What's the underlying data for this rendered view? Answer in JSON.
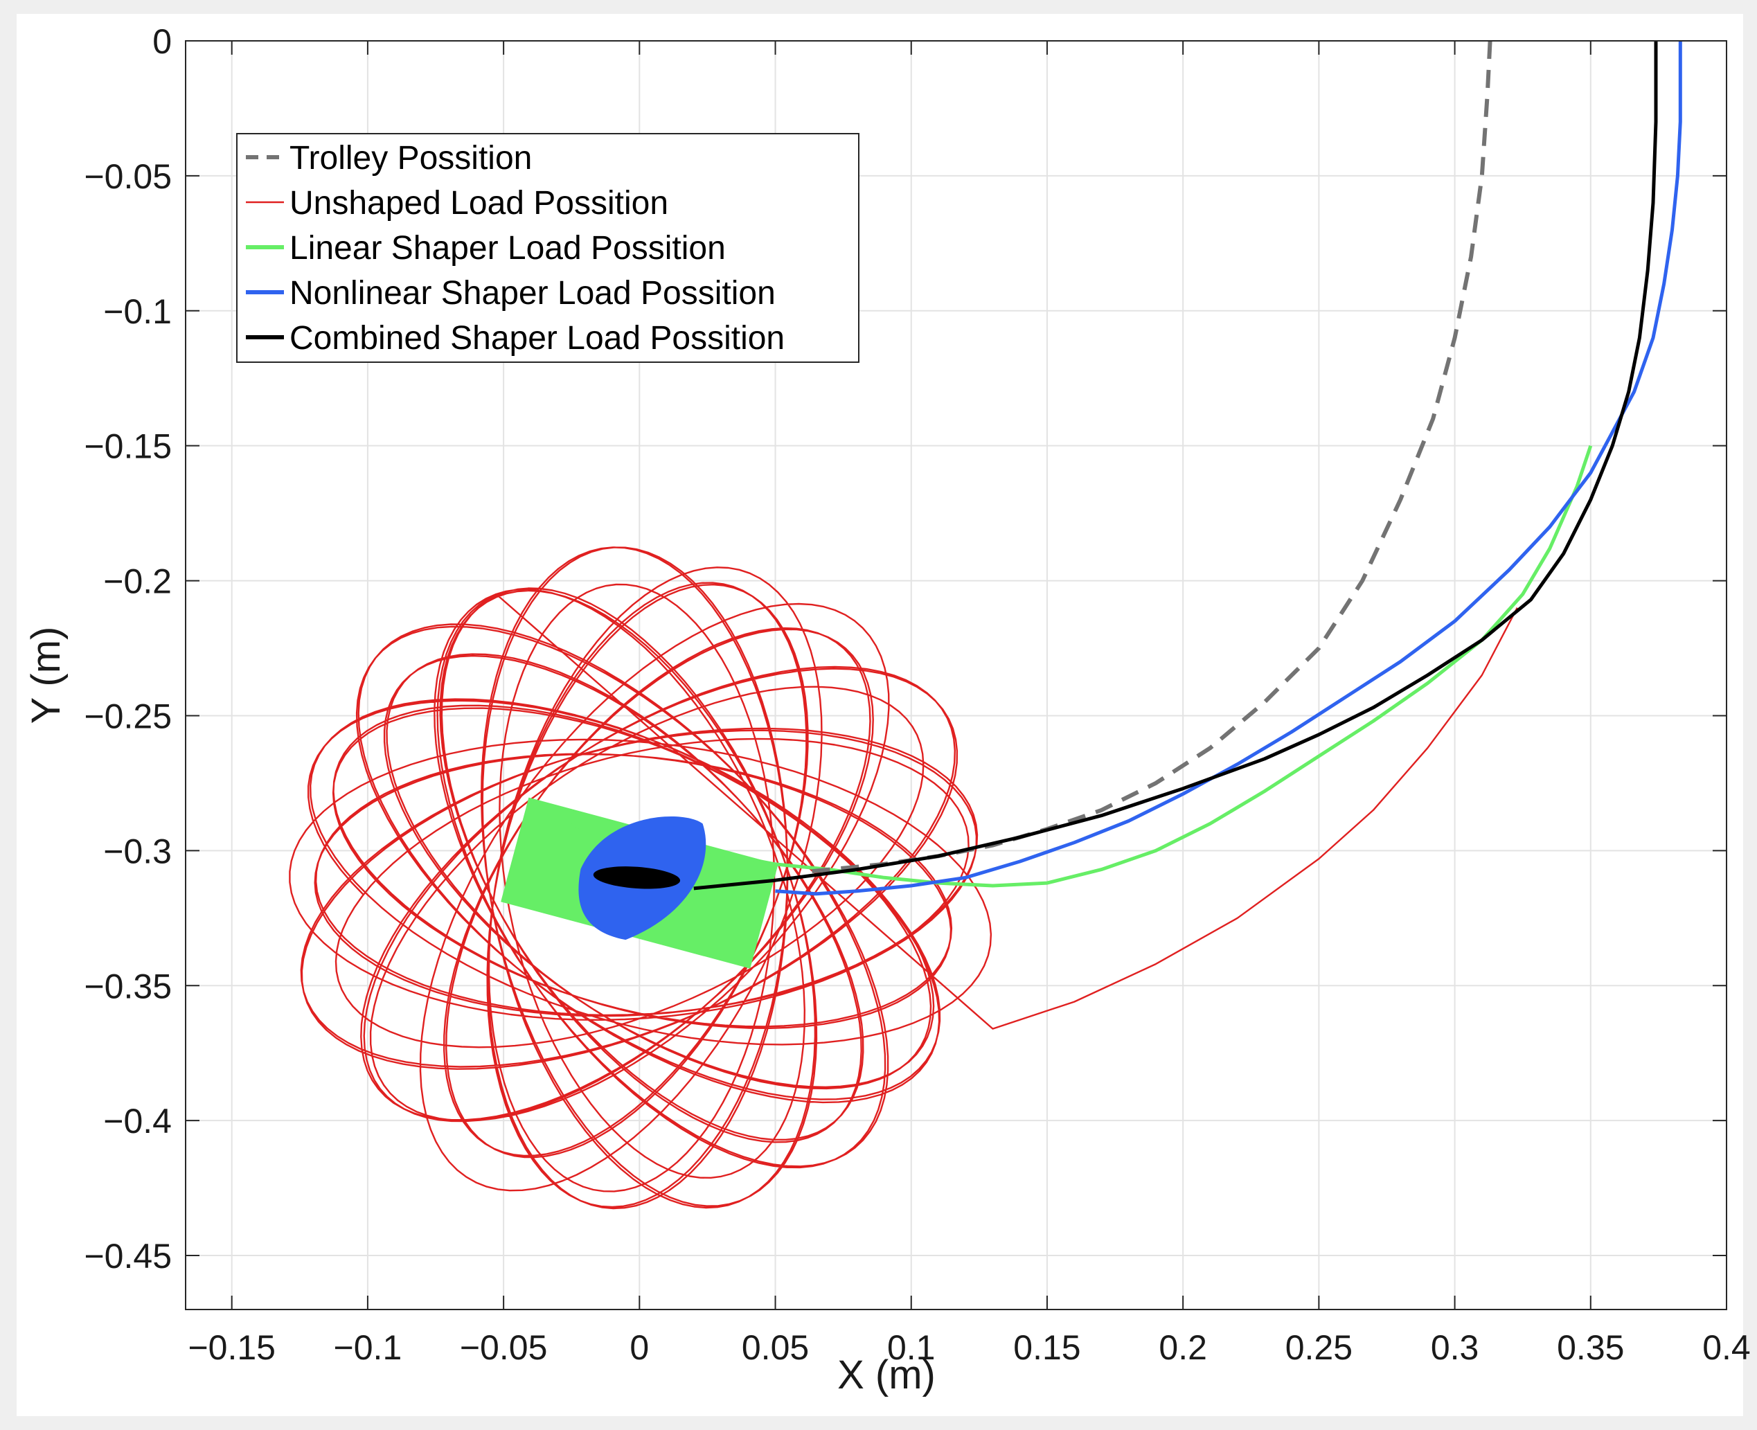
{
  "chart_data": {
    "type": "line",
    "title": "",
    "xlabel": "X (m)",
    "ylabel": "Y (m)",
    "xlim": [
      -0.167,
      0.4
    ],
    "ylim": [
      -0.47,
      0
    ],
    "grid": true,
    "legend_position": "top-left",
    "x_ticks": [
      -0.15,
      -0.1,
      -0.05,
      0,
      0.05,
      0.1,
      0.15,
      0.2,
      0.25,
      0.3,
      0.35,
      0.4
    ],
    "x_tick_labels": [
      "−0.15",
      "−0.1",
      "−0.05",
      "0",
      "0.05",
      "0.1",
      "0.15",
      "0.2",
      "0.25",
      "0.3",
      "0.35",
      "0.4"
    ],
    "y_ticks": [
      0,
      -0.05,
      -0.1,
      -0.15,
      -0.2,
      -0.25,
      -0.3,
      -0.35,
      -0.4,
      -0.45
    ],
    "y_tick_labels": [
      "0",
      "−0.05",
      "−0.1",
      "−0.15",
      "−0.2",
      "−0.25",
      "−0.3",
      "−0.35",
      "−0.4",
      "−0.45"
    ],
    "series": [
      {
        "name": "Trolley Possition",
        "color": "#737373",
        "style": "dashed",
        "x": [
          0.313,
          0.312,
          0.31,
          0.306,
          0.3,
          0.292,
          0.28,
          0.266,
          0.25,
          0.23,
          0.21,
          0.19,
          0.17,
          0.15,
          0.13,
          0.11,
          0.09,
          0.07,
          0.06
        ],
        "y": [
          0,
          -0.02,
          -0.05,
          -0.08,
          -0.11,
          -0.14,
          -0.17,
          -0.2,
          -0.225,
          -0.245,
          -0.262,
          -0.275,
          -0.285,
          -0.292,
          -0.298,
          -0.302,
          -0.305,
          -0.307,
          -0.308
        ]
      },
      {
        "name": "Unshaped Load Possition",
        "color": "#e02020",
        "style": "solid",
        "path": {
          "approach_x": [
            0.323,
            0.31,
            0.29,
            0.27,
            0.25,
            0.22,
            0.19,
            0.16,
            0.13
          ],
          "approach_y": [
            -0.21,
            -0.235,
            -0.262,
            -0.285,
            -0.303,
            -0.325,
            -0.342,
            -0.356,
            -0.366
          ],
          "oscillation_center": [
            0,
            -0.312
          ],
          "oscillation_loops": 22,
          "oscillation_rotation_deg": 115
        }
      },
      {
        "name": "Linear Shaper Load Possition",
        "color": "#66ee66",
        "style": "solid",
        "x": [
          0.35,
          0.345,
          0.335,
          0.325,
          0.31,
          0.29,
          0.27,
          0.25,
          0.23,
          0.21,
          0.19,
          0.17,
          0.15,
          0.13,
          0.11,
          0.09,
          0.07,
          0.05
        ],
        "y": [
          -0.15,
          -0.165,
          -0.188,
          -0.205,
          -0.222,
          -0.238,
          -0.252,
          -0.265,
          -0.278,
          -0.29,
          -0.3,
          -0.307,
          -0.312,
          -0.313,
          -0.312,
          -0.31,
          -0.307,
          -0.305
        ],
        "final_band": {
          "center": [
            0,
            -0.312
          ],
          "length": 0.095,
          "width": 0.04,
          "angle_deg": -15
        }
      },
      {
        "name": "Nonlinear Shaper Load Possition",
        "color": "#2f63ef",
        "style": "solid",
        "x": [
          0.383,
          0.383,
          0.382,
          0.38,
          0.377,
          0.373,
          0.366,
          0.358,
          0.35,
          0.335,
          0.32,
          0.3,
          0.28,
          0.26,
          0.24,
          0.22,
          0.2,
          0.18,
          0.16,
          0.14,
          0.12,
          0.1,
          0.08,
          0.065,
          0.05
        ],
        "y": [
          0,
          -0.03,
          -0.05,
          -0.07,
          -0.09,
          -0.11,
          -0.13,
          -0.145,
          -0.16,
          -0.18,
          -0.196,
          -0.215,
          -0.23,
          -0.243,
          -0.256,
          -0.268,
          -0.279,
          -0.289,
          -0.297,
          -0.304,
          -0.31,
          -0.313,
          -0.315,
          -0.316,
          -0.315
        ],
        "final_blob": {
          "center": [
            0.002,
            -0.311
          ],
          "size_x": 0.045,
          "size_y": 0.04
        }
      },
      {
        "name": "Combined Shaper Load Possition",
        "color": "#000000",
        "style": "solid",
        "x": [
          0.374,
          0.374,
          0.373,
          0.371,
          0.368,
          0.364,
          0.358,
          0.35,
          0.34,
          0.328,
          0.31,
          0.29,
          0.27,
          0.25,
          0.23,
          0.2,
          0.17,
          0.14,
          0.11,
          0.08,
          0.05,
          0.03,
          0.02
        ],
        "y": [
          0,
          -0.03,
          -0.06,
          -0.085,
          -0.11,
          -0.13,
          -0.15,
          -0.17,
          -0.19,
          -0.207,
          -0.222,
          -0.235,
          -0.247,
          -0.257,
          -0.266,
          -0.277,
          -0.287,
          -0.295,
          -0.302,
          -0.307,
          -0.311,
          -0.313,
          -0.314
        ],
        "final_blob": {
          "center": [
            -0.001,
            -0.31
          ],
          "size_x": 0.032,
          "size_y": 0.008
        }
      }
    ]
  }
}
